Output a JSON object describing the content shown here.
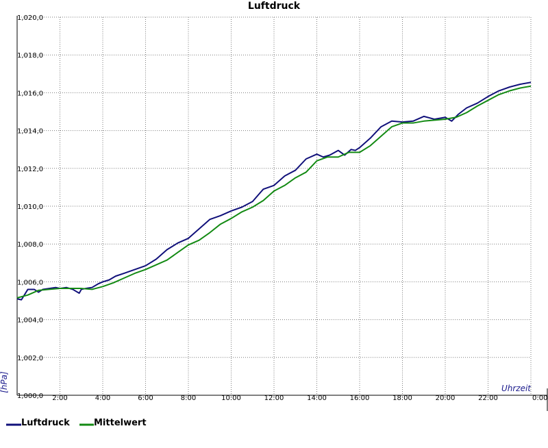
{
  "colors": {
    "luftdruck": "#10107a",
    "mittelwert": "#138a13",
    "grid": "#7a7a7a",
    "axis": "#000000",
    "unit_label": "#1a1a8c"
  },
  "chart_data": {
    "type": "line",
    "title": "Luftdruck",
    "xlabel": "Uhrzeit",
    "ylabel": "[hPa]",
    "xlim": [
      0,
      24
    ],
    "ylim": [
      1000,
      1020
    ],
    "grid": true,
    "legend_position": "bottom-left",
    "x_ticks": [
      2,
      4,
      6,
      8,
      10,
      12,
      14,
      16,
      18,
      20,
      22,
      24
    ],
    "x_tick_labels": [
      "2:00",
      "4:00",
      "6:00",
      "8:00",
      "10:00",
      "12:00",
      "14:00",
      "16:00",
      "18:00",
      "20:00",
      "22:00",
      "0:00"
    ],
    "y_ticks": [
      1000,
      1002,
      1004,
      1006,
      1008,
      1010,
      1012,
      1014,
      1016,
      1018,
      1020
    ],
    "y_tick_labels": [
      "1,000,0",
      "1,002,0",
      "1,004,0",
      "1,006,0",
      "1,008,0",
      "1,010,0",
      "1,012,0",
      "1,014,0",
      "1,016,0",
      "1,018,0",
      "1,020,0"
    ],
    "series": [
      {
        "name": "Luftdruck",
        "color": "#10107a",
        "x": [
          0.0,
          0.2,
          0.5,
          0.8,
          1.0,
          1.2,
          1.5,
          1.8,
          2.0,
          2.3,
          2.6,
          2.9,
          3.0,
          3.2,
          3.5,
          3.8,
          4.0,
          4.3,
          4.6,
          5.0,
          5.5,
          6.0,
          6.5,
          7.0,
          7.5,
          8.0,
          8.5,
          9.0,
          9.5,
          10.0,
          10.5,
          11.0,
          11.5,
          12.0,
          12.5,
          13.0,
          13.5,
          14.0,
          14.3,
          14.6,
          15.0,
          15.3,
          15.6,
          15.8,
          16.0,
          16.5,
          17.0,
          17.5,
          18.0,
          18.5,
          19.0,
          19.5,
          20.0,
          20.3,
          20.6,
          21.0,
          21.5,
          22.0,
          22.5,
          23.0,
          23.5,
          24.0
        ],
        "y": [
          1005.1,
          1005.05,
          1005.6,
          1005.6,
          1005.45,
          1005.6,
          1005.65,
          1005.7,
          1005.65,
          1005.7,
          1005.6,
          1005.4,
          1005.6,
          1005.65,
          1005.7,
          1005.9,
          1006.0,
          1006.1,
          1006.3,
          1006.45,
          1006.65,
          1006.85,
          1007.2,
          1007.7,
          1008.05,
          1008.3,
          1008.8,
          1009.3,
          1009.5,
          1009.75,
          1009.95,
          1010.25,
          1010.9,
          1011.1,
          1011.6,
          1011.9,
          1012.5,
          1012.75,
          1012.6,
          1012.7,
          1012.95,
          1012.7,
          1013.0,
          1012.95,
          1013.1,
          1013.6,
          1014.2,
          1014.5,
          1014.45,
          1014.5,
          1014.75,
          1014.6,
          1014.7,
          1014.5,
          1014.85,
          1015.2,
          1015.45,
          1015.8,
          1016.1,
          1016.3,
          1016.45,
          1016.55
        ]
      },
      {
        "name": "Mittelwert",
        "color": "#138a13",
        "x": [
          0.0,
          0.5,
          1.0,
          1.5,
          2.0,
          2.5,
          3.0,
          3.5,
          4.0,
          4.5,
          5.0,
          5.5,
          6.0,
          6.5,
          7.0,
          7.5,
          8.0,
          8.5,
          9.0,
          9.5,
          10.0,
          10.5,
          11.0,
          11.5,
          12.0,
          12.5,
          13.0,
          13.5,
          14.0,
          14.5,
          15.0,
          15.5,
          16.0,
          16.5,
          17.0,
          17.5,
          18.0,
          18.5,
          19.0,
          19.5,
          20.0,
          20.5,
          21.0,
          21.5,
          22.0,
          22.5,
          23.0,
          23.5,
          24.0
        ],
        "y": [
          1005.15,
          1005.3,
          1005.55,
          1005.6,
          1005.65,
          1005.65,
          1005.65,
          1005.6,
          1005.75,
          1005.95,
          1006.2,
          1006.45,
          1006.65,
          1006.9,
          1007.15,
          1007.55,
          1007.95,
          1008.2,
          1008.6,
          1009.05,
          1009.35,
          1009.7,
          1009.95,
          1010.3,
          1010.8,
          1011.1,
          1011.5,
          1011.8,
          1012.4,
          1012.6,
          1012.6,
          1012.85,
          1012.85,
          1013.2,
          1013.7,
          1014.2,
          1014.4,
          1014.4,
          1014.5,
          1014.55,
          1014.6,
          1014.7,
          1014.95,
          1015.3,
          1015.6,
          1015.9,
          1016.1,
          1016.25,
          1016.35
        ]
      }
    ]
  }
}
